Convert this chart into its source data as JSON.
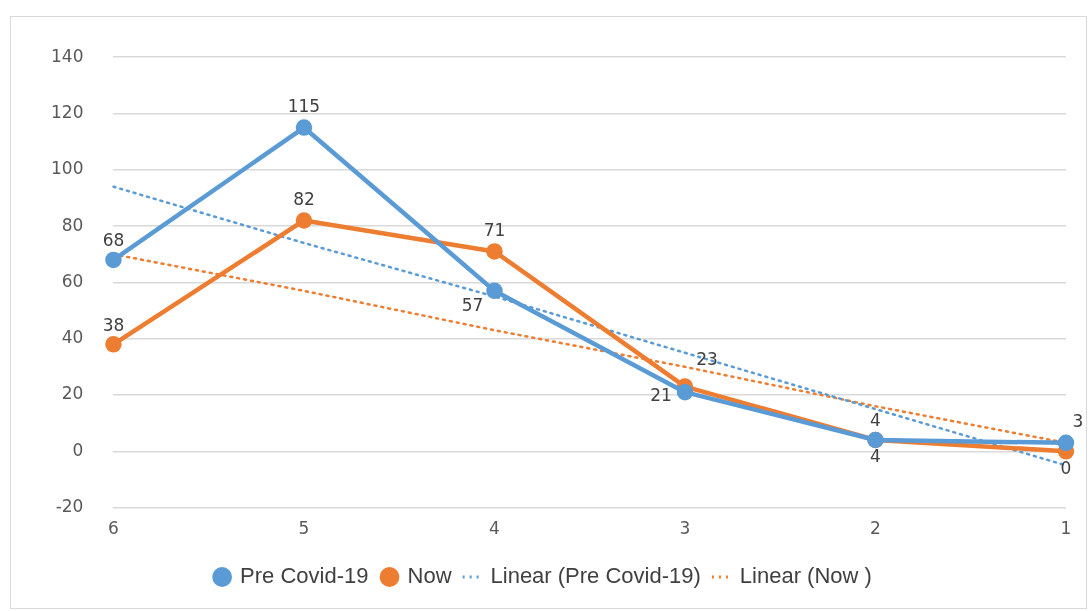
{
  "chart_data": {
    "type": "line",
    "categories": [
      "6",
      "5",
      "4",
      "3",
      "2",
      "1"
    ],
    "series": [
      {
        "name": "Pre Covid-19",
        "color": "#5b9bd5",
        "values": [
          68,
          115,
          57,
          21,
          4,
          3
        ],
        "value_labels": [
          "68",
          "115",
          "57",
          "21",
          "4",
          "3"
        ],
        "marker": "circle",
        "line_style": "solid"
      },
      {
        "name": "Now",
        "color": "#ed7d31",
        "values": [
          38,
          82,
          71,
          23,
          4,
          0
        ],
        "value_labels": [
          "38",
          "82",
          "71",
          "23",
          "4",
          "0"
        ],
        "marker": "circle",
        "line_style": "solid"
      },
      {
        "name": "Linear (Pre Covid-19)",
        "color": "#5b9bd5",
        "values": [
          94,
          74,
          55,
          35,
          15,
          -5
        ],
        "marker": "none",
        "line_style": "dotted"
      },
      {
        "name": "Linear (Now )",
        "color": "#ed7d31",
        "values": [
          70,
          57,
          43,
          30,
          16,
          3
        ],
        "marker": "none",
        "line_style": "dotted"
      }
    ],
    "ylim": [
      -20,
      140
    ],
    "yticks": [
      -20,
      0,
      20,
      40,
      60,
      80,
      100,
      120,
      140
    ],
    "grid": "y",
    "legend": "bottom"
  }
}
